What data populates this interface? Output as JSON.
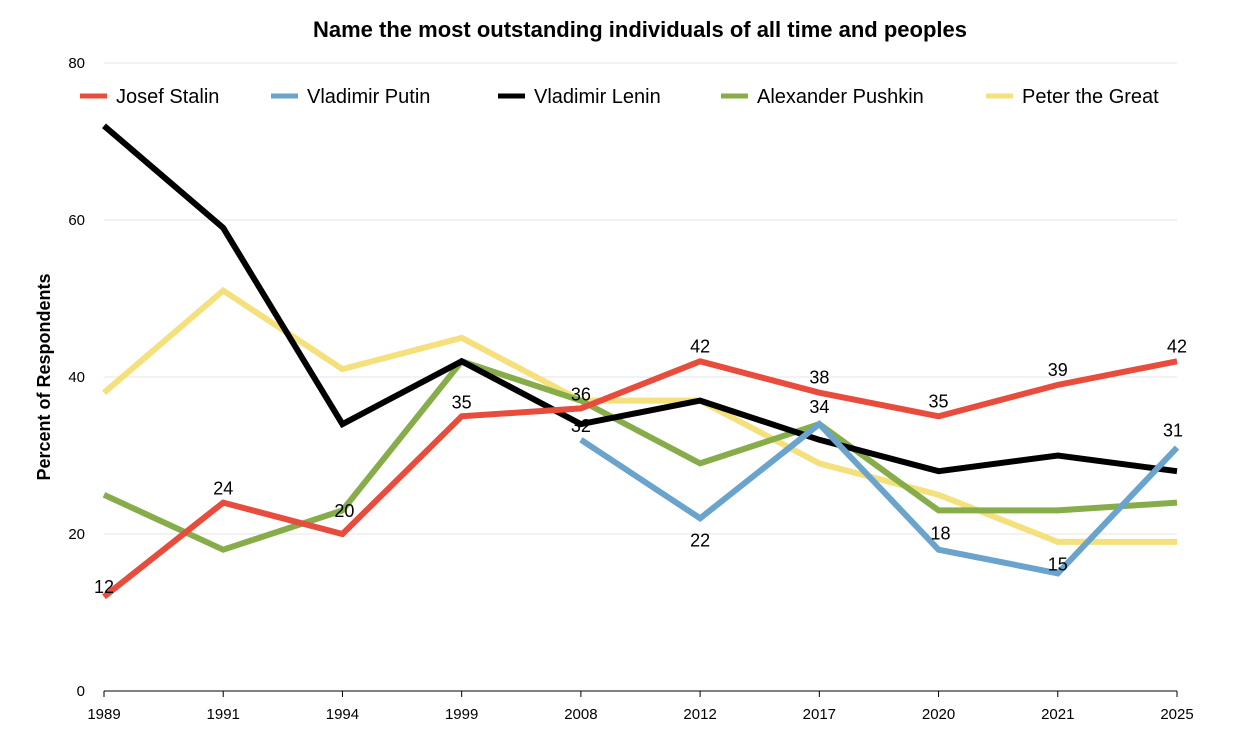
{
  "chart_data": {
    "type": "line",
    "title": "Name the most outstanding individuals of all time and peoples",
    "xlabel": "",
    "ylabel": "Percent of Respondents",
    "ylim": [
      0,
      80
    ],
    "yticks": [
      "0",
      "20",
      "40",
      "60",
      "80"
    ],
    "grid": true,
    "legend_position": "top",
    "categories": [
      "1989",
      "1991",
      "1994",
      "1999",
      "2008",
      "2012",
      "2017",
      "2020",
      "2021",
      "2025"
    ],
    "series": [
      {
        "name": "Josef Stalin",
        "color": "#e84c3d",
        "values": [
          12,
          24,
          20,
          35,
          36,
          42,
          38,
          35,
          39,
          42
        ],
        "labels": [
          "12",
          "24",
          "20",
          "35",
          "36",
          "42",
          "38",
          "35",
          "39",
          "42"
        ]
      },
      {
        "name": "Vladimir Putin",
        "color": "#6aa3cc",
        "values": [
          null,
          null,
          null,
          null,
          32,
          22,
          34,
          18,
          15,
          31
        ],
        "labels": [
          null,
          null,
          null,
          null,
          "32",
          "22",
          "34",
          "18",
          "15",
          "31"
        ]
      },
      {
        "name": "Vladimir Lenin",
        "color": "#000000",
        "values": [
          72,
          59,
          34,
          42,
          34,
          37,
          32,
          28,
          30,
          28
        ],
        "labels": [
          null,
          null,
          null,
          null,
          null,
          null,
          null,
          null,
          null,
          null
        ]
      },
      {
        "name": "Alexander Pushkin",
        "color": "#86ad4a",
        "values": [
          25,
          18,
          23,
          42,
          37,
          29,
          34,
          23,
          23,
          24
        ],
        "labels": [
          null,
          null,
          null,
          null,
          null,
          null,
          null,
          null,
          null,
          null
        ]
      },
      {
        "name": "Peter the Great",
        "color": "#f5e07e",
        "values": [
          38,
          51,
          41,
          45,
          37,
          37,
          29,
          25,
          19,
          19
        ],
        "labels": [
          null,
          null,
          null,
          null,
          null,
          null,
          null,
          null,
          null,
          null
        ]
      }
    ]
  }
}
